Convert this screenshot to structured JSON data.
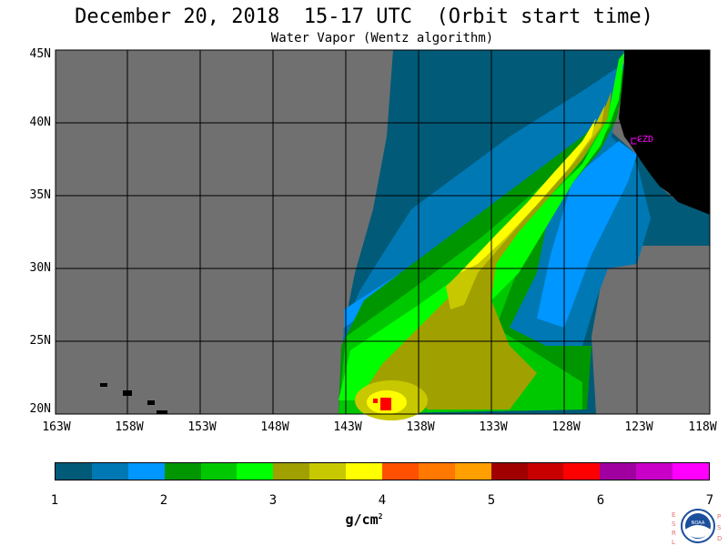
{
  "title": "December 20, 2018  15-17 UTC  (Orbit start time)",
  "subtitle": "Water Vapor (Wentz algorithm)",
  "map": {
    "lat_labels": [
      "45N",
      "40N",
      "35N",
      "30N",
      "25N",
      "20N"
    ],
    "lon_labels": [
      "163W",
      "158W",
      "153W",
      "148W",
      "143W",
      "138W",
      "133W",
      "128W",
      "123W",
      "118W"
    ],
    "station_label": "CZD",
    "colors": {
      "no_data": "#707070",
      "land": "#000000",
      "station": "#ff00ff"
    }
  },
  "colorbar": {
    "ticks": [
      "1",
      "2",
      "3",
      "4",
      "5",
      "6",
      "7"
    ],
    "units": "g/cm",
    "units_exp": "2",
    "colors": [
      "#005a78",
      "#0078b4",
      "#0096ff",
      "#009600",
      "#00c800",
      "#00ff00",
      "#a0a000",
      "#c8c800",
      "#ffff00",
      "#ff5000",
      "#ff7800",
      "#ffa000",
      "#a00000",
      "#c80000",
      "#ff0000",
      "#a000a0",
      "#c800c8",
      "#ff00ff"
    ]
  },
  "logo": {
    "left_letters": "ESRL",
    "right_letters": "PSD",
    "center_text": "NOAA"
  }
}
